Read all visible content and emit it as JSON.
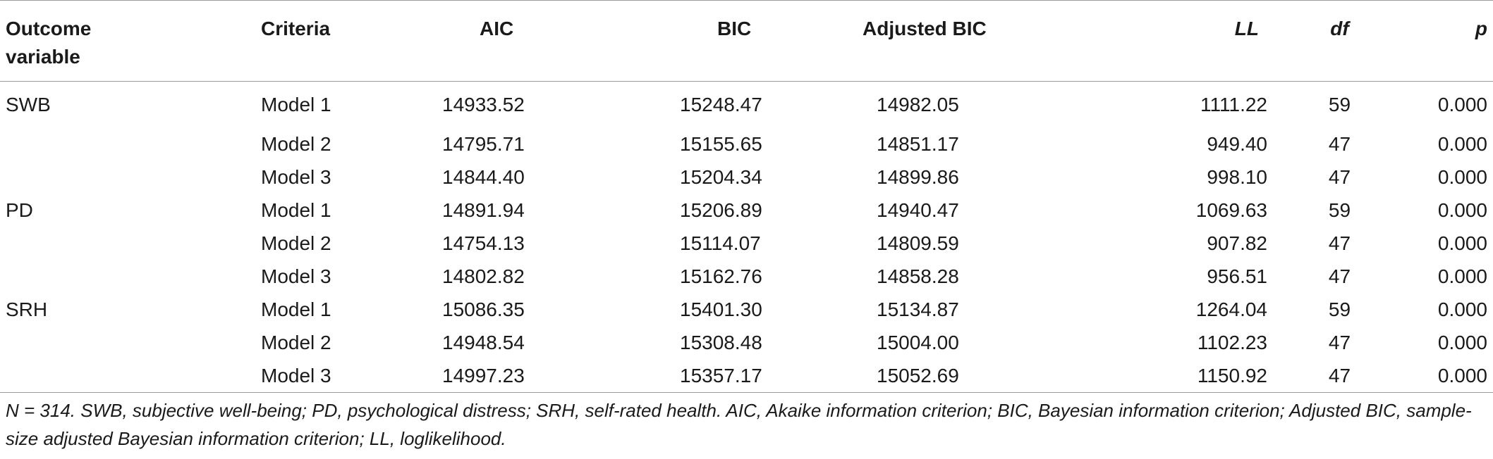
{
  "headers": {
    "outcome_line1": "Outcome",
    "outcome_line2": "variable",
    "criteria": "Criteria",
    "aic": "AIC",
    "bic": "BIC",
    "adjusted_bic": "Adjusted BIC",
    "ll": "LL",
    "df": "df",
    "p": "p"
  },
  "rows": [
    {
      "outcome": "SWB",
      "criteria": "Model 1",
      "aic": "14933.52",
      "bic": "15248.47",
      "adjusted_bic": "14982.05",
      "ll": "1111.22",
      "df": "59",
      "p": "0.000"
    },
    {
      "outcome": "",
      "criteria": "Model 2",
      "aic": "14795.71",
      "bic": "15155.65",
      "adjusted_bic": "14851.17",
      "ll": "949.40",
      "df": "47",
      "p": "0.000"
    },
    {
      "outcome": "",
      "criteria": "Model 3",
      "aic": "14844.40",
      "bic": "15204.34",
      "adjusted_bic": "14899.86",
      "ll": "998.10",
      "df": "47",
      "p": "0.000"
    },
    {
      "outcome": "PD",
      "criteria": "Model 1",
      "aic": "14891.94",
      "bic": "15206.89",
      "adjusted_bic": "14940.47",
      "ll": "1069.63",
      "df": "59",
      "p": "0.000"
    },
    {
      "outcome": "",
      "criteria": "Model 2",
      "aic": "14754.13",
      "bic": "15114.07",
      "adjusted_bic": "14809.59",
      "ll": "907.82",
      "df": "47",
      "p": "0.000"
    },
    {
      "outcome": "",
      "criteria": "Model 3",
      "aic": "14802.82",
      "bic": "15162.76",
      "adjusted_bic": "14858.28",
      "ll": "956.51",
      "df": "47",
      "p": "0.000"
    },
    {
      "outcome": "SRH",
      "criteria": "Model 1",
      "aic": "15086.35",
      "bic": "15401.30",
      "adjusted_bic": "15134.87",
      "ll": "1264.04",
      "df": "59",
      "p": "0.000"
    },
    {
      "outcome": "",
      "criteria": "Model 2",
      "aic": "14948.54",
      "bic": "15308.48",
      "adjusted_bic": "15004.00",
      "ll": "1102.23",
      "df": "47",
      "p": "0.000"
    },
    {
      "outcome": "",
      "criteria": "Model 3",
      "aic": "14997.23",
      "bic": "15357.17",
      "adjusted_bic": "15052.69",
      "ll": "1150.92",
      "df": "47",
      "p": "0.000"
    }
  ],
  "footnote": "N = 314. SWB, subjective well-being; PD, psychological distress; SRH, self-rated health. AIC, Akaike information criterion; BIC, Bayesian information criterion; Adjusted BIC, sample-size adjusted Bayesian information criterion; LL, loglikelihood."
}
